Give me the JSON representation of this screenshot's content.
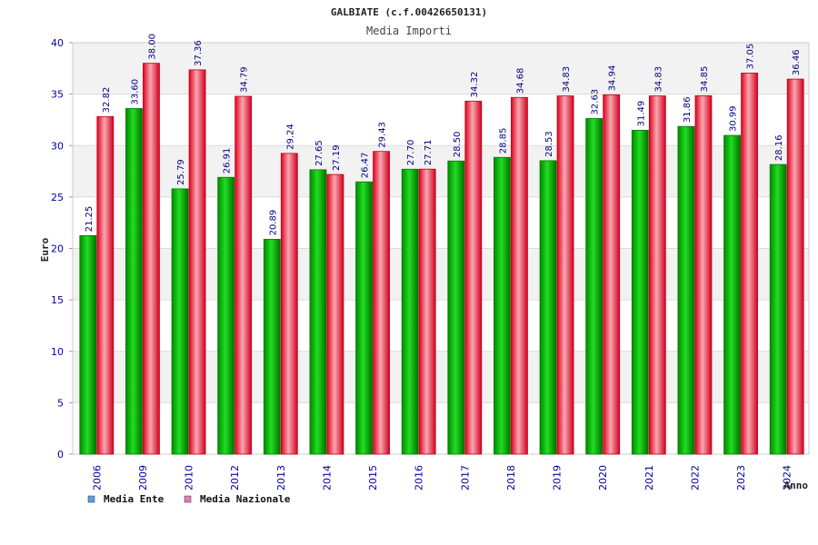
{
  "chart_data": {
    "type": "bar",
    "title": "GALBIATE (c.f.00426650131)",
    "subtitle": "Media Importi",
    "xlabel": "Anno",
    "ylabel": "Euro",
    "ylim": [
      0,
      40
    ],
    "yticks": [
      "0",
      "5",
      "10",
      "15",
      "20",
      "25",
      "30",
      "35",
      "40"
    ],
    "grid": true,
    "legend_position": "bottom-left",
    "categories": [
      "2006",
      "2009",
      "2010",
      "2012",
      "2013",
      "2014",
      "2015",
      "2016",
      "2017",
      "2018",
      "2019",
      "2020",
      "2021",
      "2022",
      "2023",
      "2024"
    ],
    "series": [
      {
        "name": "Media Ente",
        "values": [
          21.25,
          33.6,
          25.79,
          26.91,
          20.89,
          27.65,
          26.47,
          27.7,
          28.5,
          28.85,
          28.53,
          32.63,
          31.49,
          31.86,
          30.99,
          28.16
        ],
        "labels": [
          "21.25",
          "33.60",
          "25.79",
          "26.91",
          "20.89",
          "27.65",
          "26.47",
          "27.70",
          "28.50",
          "28.85",
          "28.53",
          "32.63",
          "31.49",
          "31.86",
          "30.99",
          "28.16"
        ]
      },
      {
        "name": "Media Nazionale",
        "values": [
          32.82,
          38.0,
          37.36,
          34.79,
          29.24,
          27.19,
          29.43,
          27.71,
          34.32,
          34.68,
          34.83,
          34.94,
          34.83,
          34.85,
          37.05,
          36.46
        ],
        "labels": [
          "32.82",
          "38.00",
          "37.36",
          "34.79",
          "29.24",
          "27.19",
          "29.43",
          "27.71",
          "34.32",
          "34.68",
          "34.83",
          "34.94",
          "34.83",
          "34.85",
          "37.05",
          "36.46"
        ]
      }
    ]
  },
  "colors": {
    "series1": "#00c000",
    "series2": "#e81030",
    "legend_swatch1": "#5aa0e6",
    "legend_swatch2": "#e080b0",
    "axis_text": "#0000a0",
    "band": "#f2f2f2",
    "grid": "#dcdcdc"
  }
}
